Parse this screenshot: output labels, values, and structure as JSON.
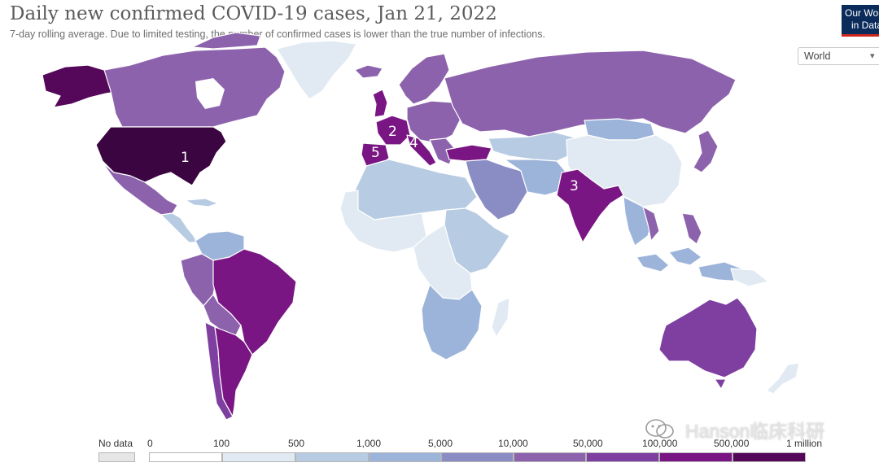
{
  "header": {
    "title": "Daily new confirmed COVID-19 cases, Jan 21, 2022",
    "subtitle": "7-day rolling average. Due to limited testing, the number of confirmed cases is lower than the true number of infections.",
    "logo_line1": "Our World",
    "logo_line2": "in Data",
    "logo_color": "#0b2b5a"
  },
  "controls": {
    "region": "World"
  },
  "map": {
    "rank_labels": [
      "1",
      "2",
      "3",
      "4",
      "5"
    ],
    "colors": {
      "no_data": "#e6e6e6",
      "bin_0": "#ffffff",
      "bin_100": "#e1eaf2",
      "bin_500": "#b7cbe3",
      "bin_1000": "#9db4da",
      "bin_5000": "#8a8cc4",
      "bin_10000": "#8d62ad",
      "bin_50000": "#7e3fa0",
      "bin_100000": "#7a1683",
      "bin_500000": "#55085a",
      "bin_1m": "#3a0540"
    }
  },
  "legend": {
    "no_data": "No data",
    "ticks": [
      "0",
      "100",
      "500",
      "1,000",
      "5,000",
      "10,000",
      "50,000",
      "100,000",
      "500,000",
      "1 million"
    ]
  },
  "watermark": "Hanson临床科研"
}
